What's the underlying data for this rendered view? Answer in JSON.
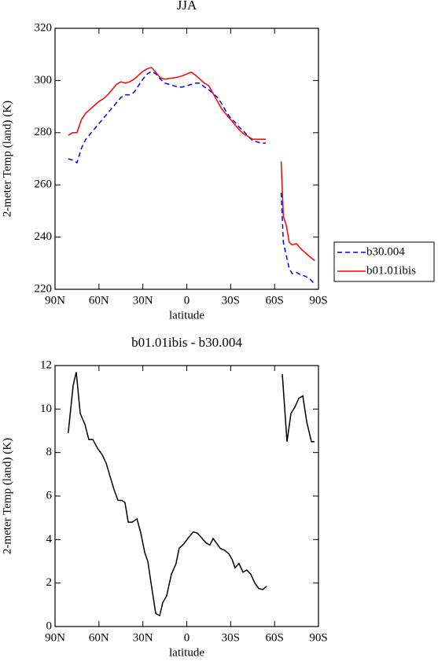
{
  "chart_data": [
    {
      "type": "line",
      "title": "JJA",
      "xlabel": "latitude",
      "ylabel": "2-meter Temp (land) (K)",
      "xlim": [
        90,
        -90
      ],
      "ylim": [
        220,
        320
      ],
      "xticks": [
        {
          "value": 90,
          "label": "90N"
        },
        {
          "value": 60,
          "label": "60N"
        },
        {
          "value": 30,
          "label": "30N"
        },
        0,
        {
          "value": -30,
          "label": "30S"
        },
        {
          "value": -60,
          "label": "60S"
        },
        {
          "value": -90,
          "label": "90S"
        }
      ],
      "yticks": [
        220,
        240,
        260,
        280,
        300,
        320
      ],
      "legend": "right",
      "x": [
        81,
        78,
        75,
        72,
        69,
        66,
        63,
        60,
        57,
        54,
        51,
        48,
        45,
        42,
        39,
        36,
        33,
        30,
        27,
        24,
        21,
        18,
        15,
        12,
        9,
        6,
        3,
        0,
        -3,
        -6,
        -9,
        -12,
        -15,
        -18,
        -21,
        -24,
        -27,
        -30,
        -33,
        -36,
        -39,
        -42,
        -45,
        -48,
        -51,
        -54,
        -59,
        -64.5,
        -66,
        -68,
        -70,
        -72,
        -75,
        -78,
        -81,
        -84,
        -87.5
      ],
      "series": [
        {
          "name": "b30.004",
          "color": "#0000ff",
          "dash": true,
          "values": [
            270,
            269.5,
            268.5,
            274,
            277.5,
            279.5,
            281.5,
            283.5,
            285.5,
            287.5,
            289.5,
            291.5,
            293.5,
            294.5,
            294.5,
            295.5,
            298,
            300.5,
            302.5,
            303.5,
            302.5,
            300.5,
            299,
            298.5,
            298,
            297.5,
            297.5,
            298,
            298.5,
            299,
            299,
            297.5,
            296.5,
            295,
            293.5,
            291,
            288,
            285.5,
            284,
            282,
            280.5,
            278.5,
            277,
            276.5,
            276,
            276,
            null,
            257,
            238,
            233,
            228,
            226,
            226.5,
            225.5,
            225,
            224,
            222
          ]
        },
        {
          "name": "b01.01ibis",
          "color": "#ff0000",
          "dash": false,
          "values": [
            279,
            280,
            280,
            285,
            287.5,
            289,
            290.5,
            292,
            293,
            294.5,
            296.5,
            298.5,
            299.5,
            299,
            299.5,
            300.5,
            302,
            303.5,
            304.5,
            305,
            303,
            301,
            300.5,
            300.8,
            301,
            301.3,
            301.8,
            302.5,
            303.2,
            302,
            300.5,
            299,
            298,
            295,
            292,
            289,
            287,
            285,
            283,
            281,
            279.5,
            278.5,
            277.5,
            277.5,
            277.5,
            277.5,
            null,
            269,
            248,
            244.5,
            238,
            237,
            237.5,
            235.5,
            234,
            232.5,
            231
          ]
        }
      ]
    },
    {
      "type": "line",
      "title": "b01.01ibis - b30.004",
      "xlabel": "latitude",
      "ylabel": "2-meter Temp (land) (K)",
      "xlim": [
        90,
        -90
      ],
      "ylim": [
        0,
        12
      ],
      "xticks": [
        {
          "value": 90,
          "label": "90N"
        },
        {
          "value": 60,
          "label": "60N"
        },
        {
          "value": 30,
          "label": "30N"
        },
        0,
        {
          "value": -30,
          "label": "30S"
        },
        {
          "value": -60,
          "label": "60S"
        },
        {
          "value": -90,
          "label": "90S"
        }
      ],
      "yticks": [
        0,
        2,
        4,
        6,
        8,
        10,
        12
      ],
      "x": [
        81,
        77.6,
        75.5,
        72.8,
        69.6,
        66.9,
        64.2,
        61,
        57.8,
        55,
        52.4,
        49.7,
        47,
        44.3,
        42.2,
        40,
        37.3,
        34,
        31.4,
        28.7,
        26.6,
        24.4,
        21.2,
        18.5,
        16.4,
        13.8,
        10.5,
        7.3,
        5.2,
        2,
        -1.3,
        -4.5,
        -7.2,
        -9.9,
        -13.1,
        -15.8,
        -18,
        -20.7,
        -22.8,
        -26,
        -28.7,
        -30.9,
        -33,
        -35.7,
        -38.4,
        -41.1,
        -43.8,
        -46.5,
        -49.2,
        -51.9,
        -54.6,
        -60,
        -65.3,
        -68.5,
        -71.2,
        -74,
        -76.6,
        -79.3,
        -82,
        -85.2,
        -87.3
      ],
      "series": [
        {
          "color": "#000000",
          "dash": false,
          "values": [
            8.9,
            11.1,
            11.7,
            9.8,
            9.3,
            8.6,
            8.6,
            8.2,
            7.9,
            7.5,
            6.9,
            6.3,
            5.8,
            5.8,
            5.7,
            4.8,
            4.8,
            4.95,
            4.3,
            3.4,
            3.0,
            2.0,
            0.6,
            0.5,
            1.1,
            1.4,
            2.4,
            2.9,
            3.6,
            3.8,
            4.1,
            4.35,
            4.3,
            4.1,
            3.85,
            3.75,
            4.05,
            3.8,
            3.6,
            3.5,
            3.35,
            3.1,
            2.7,
            2.9,
            2.5,
            2.6,
            2.4,
            2.0,
            1.75,
            1.7,
            1.85,
            null,
            11.6,
            8.5,
            9.8,
            10.1,
            10.5,
            10.6,
            9.4,
            8.5,
            8.5
          ]
        }
      ]
    }
  ]
}
